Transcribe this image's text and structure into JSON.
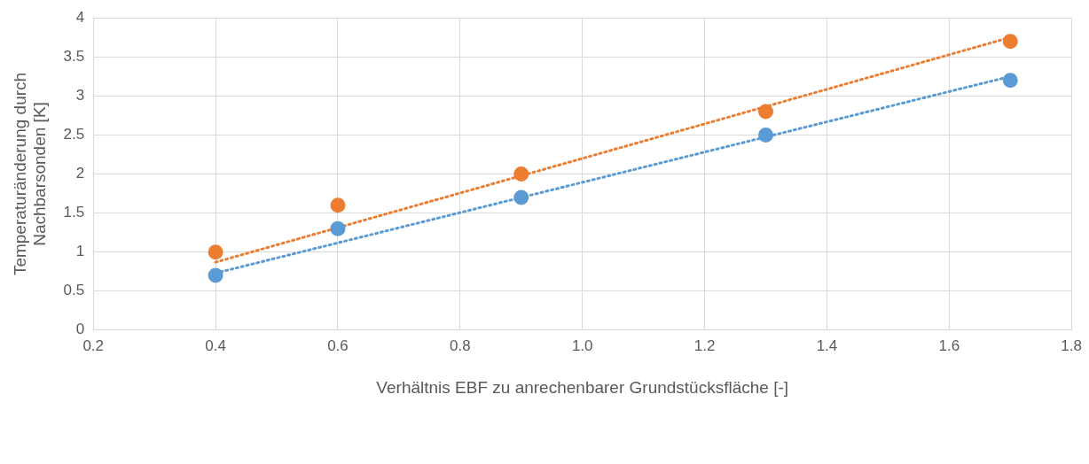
{
  "chart_data": {
    "type": "scatter",
    "xlabel": "Verhältnis EBF zu anrechenbarer Grundstücksfläche [-]",
    "ylabel": "Temperaturänderung durch\nNachbarsonden [K]",
    "series": [
      {
        "color": "#5b9bd5",
        "marker": "circle",
        "x": [
          0.4,
          0.6,
          0.9,
          1.3,
          1.7
        ],
        "values": [
          0.7,
          1.3,
          1.7,
          2.5,
          3.2
        ]
      },
      {
        "color": "#ed7d31",
        "marker": "circle",
        "x": [
          0.4,
          0.6,
          0.9,
          1.3,
          1.7
        ],
        "values": [
          1.0,
          1.6,
          2.0,
          2.8,
          3.7
        ]
      },
      {
        "type": "line",
        "color": "#5b9bd5",
        "marker": "none",
        "line_style": "dotted",
        "x": [
          0.4,
          1.7
        ],
        "values": [
          0.73,
          3.25
        ]
      },
      {
        "type": "line",
        "color": "#ed7d31",
        "marker": "none",
        "line_style": "dotted",
        "x": [
          0.4,
          1.7
        ],
        "values": [
          0.87,
          3.75
        ]
      }
    ],
    "xlim": [
      0.2,
      1.8
    ],
    "xticks": [
      0.2,
      0.4,
      0.6,
      0.8,
      {
        "value": 1.0,
        "label": "1.0"
      },
      1.2,
      1.4,
      1.6,
      1.8
    ],
    "ylim": [
      0,
      4
    ],
    "yticks": [
      0,
      0.5,
      1,
      1.5,
      2,
      2.5,
      3,
      3.5,
      4
    ],
    "grid": true,
    "legend": false
  }
}
